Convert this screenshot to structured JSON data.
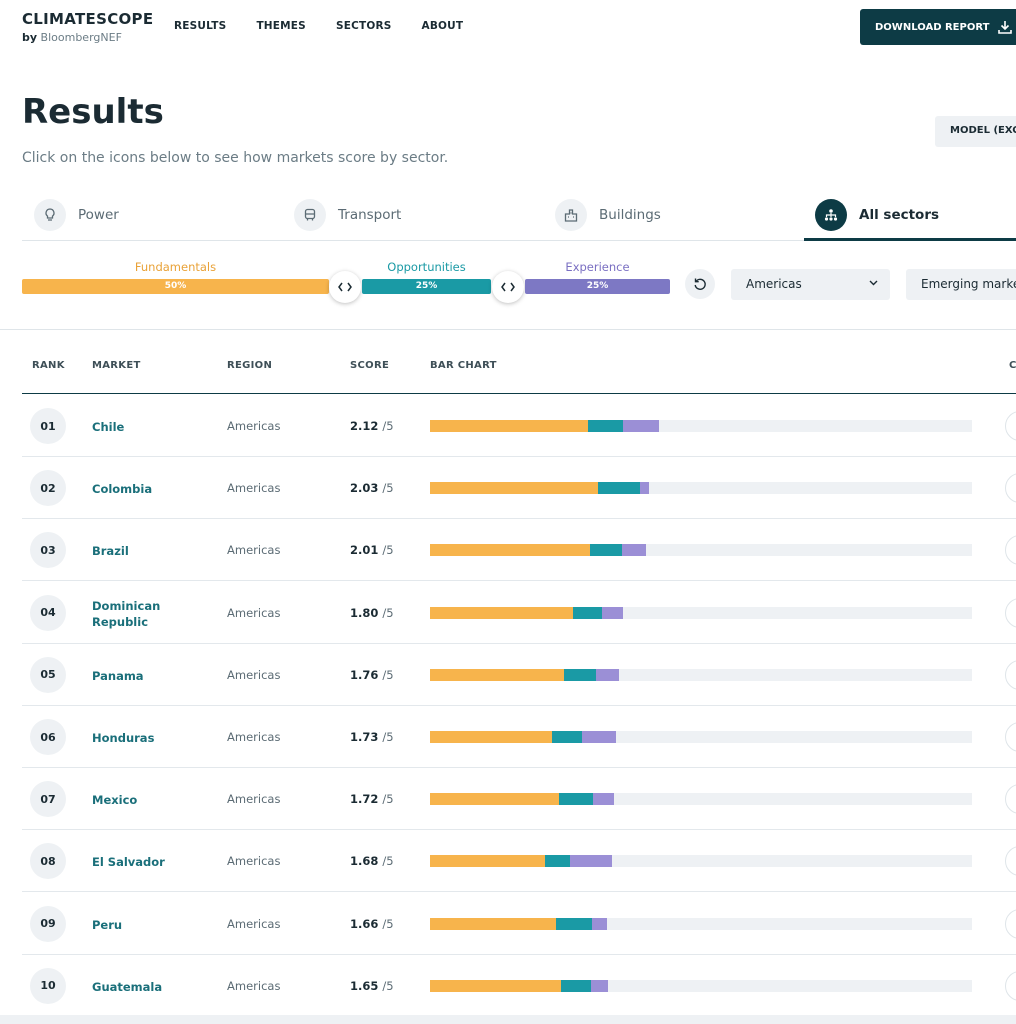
{
  "header": {
    "logo_title": "CLIMATESCOPE",
    "logo_by": "by",
    "logo_brand": "BloombergNEF",
    "nav": [
      "RESULTS",
      "THEMES",
      "SECTORS",
      "ABOUT"
    ],
    "download_label": "DOWNLOAD REPORT"
  },
  "page": {
    "title": "Results",
    "subtitle": "Click on the icons below to see how markets score by sector.",
    "model_button": "MODEL (EXCEL)"
  },
  "tabs": [
    {
      "label": "Power",
      "icon": "bulb-icon"
    },
    {
      "label": "Transport",
      "icon": "bus-icon"
    },
    {
      "label": "Buildings",
      "icon": "building-icon"
    },
    {
      "label": "All sectors",
      "icon": "hierarchy-icon",
      "active": true
    }
  ],
  "weights": {
    "fundamentals": {
      "label": "Fundamentals",
      "value": "50%"
    },
    "opportunities": {
      "label": "Opportunities",
      "value": "25%"
    },
    "experience": {
      "label": "Experience",
      "value": "25%"
    }
  },
  "filters": {
    "region": "Americas",
    "market_type": "Emerging markets"
  },
  "colors": {
    "fundamentals": "#f7b44c",
    "opportunities": "#1a9aa5",
    "experience": "#9b8fd6",
    "primary": "#0d3b45"
  },
  "table": {
    "headers": {
      "rank": "RANK",
      "market": "MARKET",
      "region": "REGION",
      "score": "SCORE",
      "bar": "BAR CHART",
      "extra": "C"
    },
    "score_suffix": "/5",
    "rows": [
      {
        "rank": "01",
        "market": "Chile",
        "region": "Americas",
        "score": "2.12",
        "f": 0.291,
        "o": 0.066,
        "e": 0.066
      },
      {
        "rank": "02",
        "market": "Colombia",
        "region": "Americas",
        "score": "2.03",
        "f": 0.31,
        "o": 0.077,
        "e": 0.017
      },
      {
        "rank": "03",
        "market": "Brazil",
        "region": "Americas",
        "score": "2.01",
        "f": 0.295,
        "o": 0.059,
        "e": 0.044
      },
      {
        "rank": "04",
        "market": "Dominican Republic",
        "region": "Americas",
        "score": "1.80",
        "f": 0.264,
        "o": 0.053,
        "e": 0.039
      },
      {
        "rank": "05",
        "market": "Panama",
        "region": "Americas",
        "score": "1.76",
        "f": 0.247,
        "o": 0.059,
        "e": 0.042
      },
      {
        "rank": "06",
        "market": "Honduras",
        "region": "Americas",
        "score": "1.73",
        "f": 0.225,
        "o": 0.055,
        "e": 0.063
      },
      {
        "rank": "07",
        "market": "Mexico",
        "region": "Americas",
        "score": "1.72",
        "f": 0.238,
        "o": 0.063,
        "e": 0.039
      },
      {
        "rank": "08",
        "market": "El Salvador",
        "region": "Americas",
        "score": "1.68",
        "f": 0.212,
        "o": 0.046,
        "e": 0.077
      },
      {
        "rank": "09",
        "market": "Peru",
        "region": "Americas",
        "score": "1.66",
        "f": 0.232,
        "o": 0.066,
        "e": 0.029
      },
      {
        "rank": "10",
        "market": "Guatemala",
        "region": "Americas",
        "score": "1.65",
        "f": 0.242,
        "o": 0.055,
        "e": 0.031
      }
    ]
  }
}
